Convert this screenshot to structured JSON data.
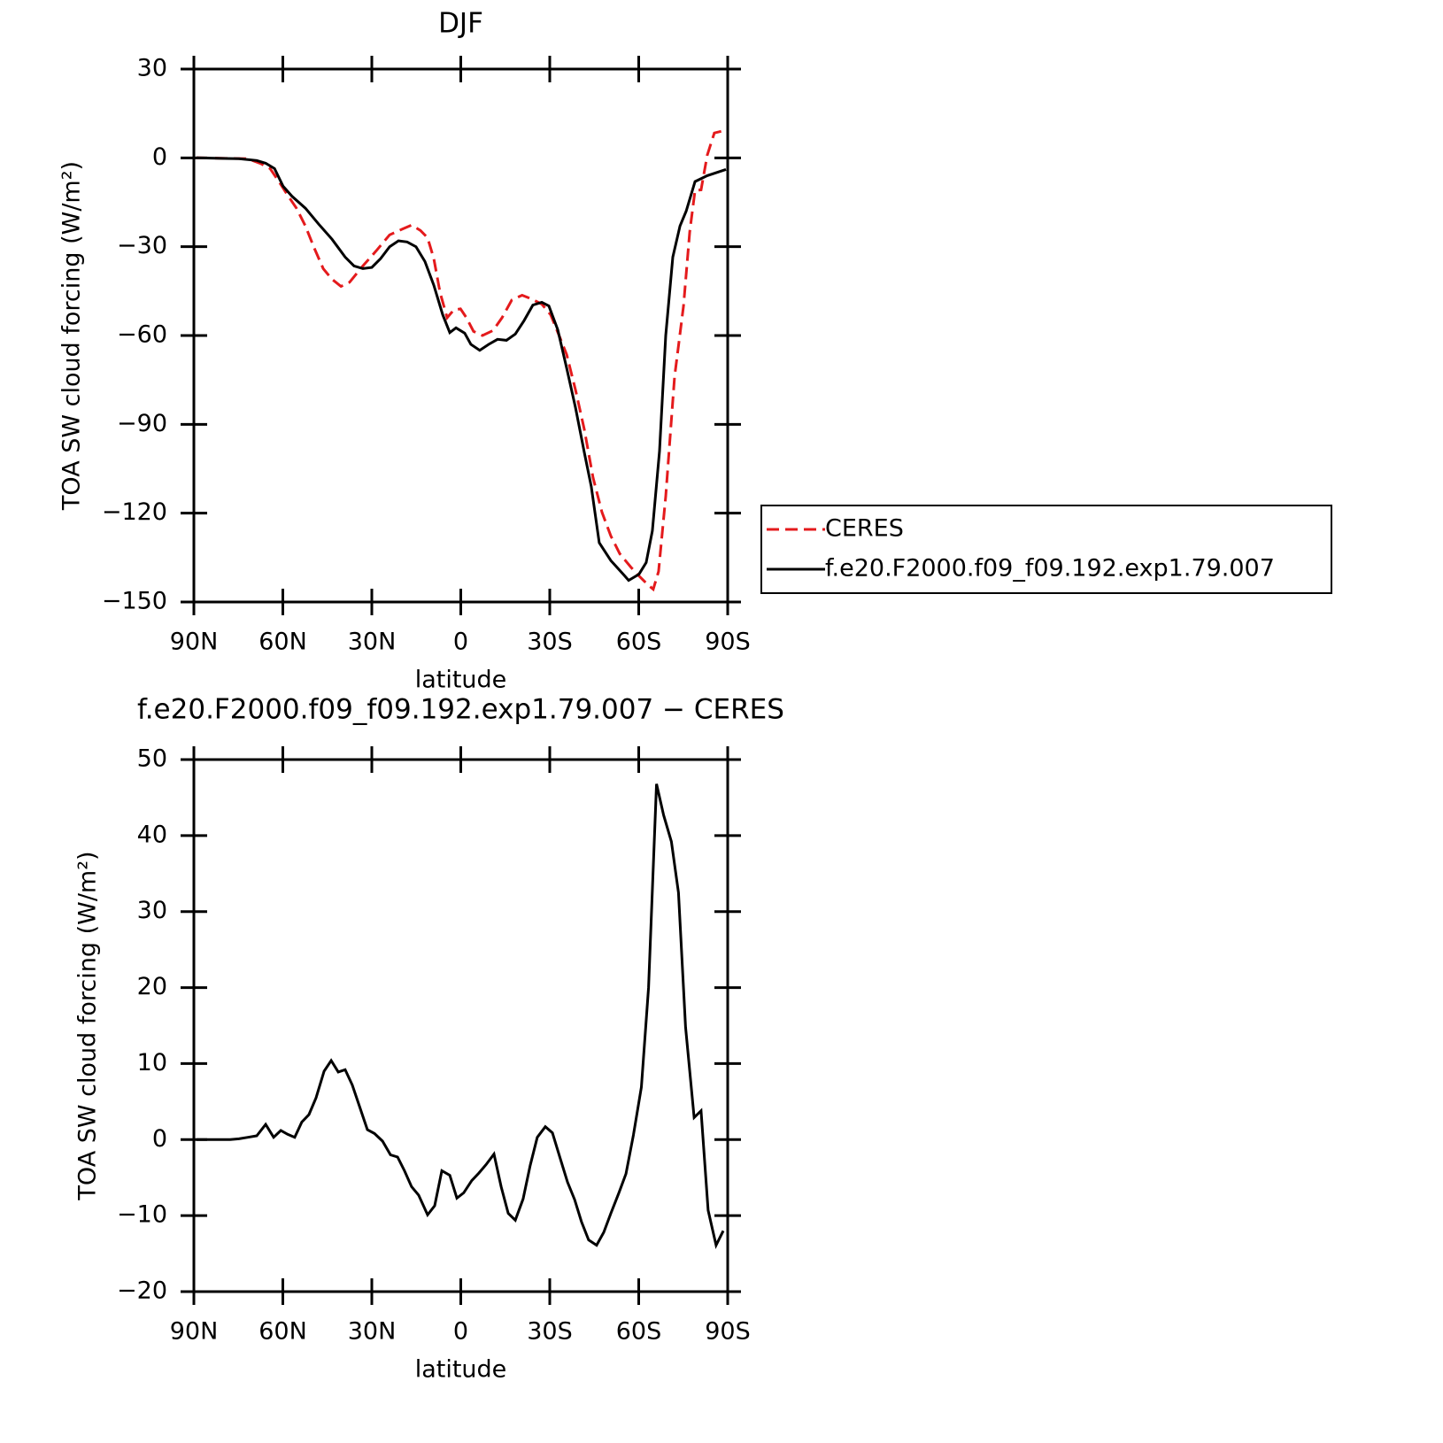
{
  "chart_data": [
    {
      "type": "line",
      "title": "DJF",
      "x_label": "latitude",
      "y_label": "TOA SW cloud forcing (W/m²)",
      "xlim": [
        90,
        -90
      ],
      "xticks": [
        {
          "value": 90,
          "label": "90N"
        },
        {
          "value": 60,
          "label": "60N"
        },
        {
          "value": 30,
          "label": "30N"
        },
        0,
        {
          "value": -30,
          "label": "30S"
        },
        {
          "value": -60,
          "label": "60S"
        },
        {
          "value": -90,
          "label": "90S"
        }
      ],
      "ylim": [
        -150,
        30
      ],
      "yticks": [
        {
          "value": -150,
          "label": "−150"
        },
        {
          "value": -120,
          "label": "−120"
        },
        {
          "value": -90,
          "label": "−90"
        },
        {
          "value": -60,
          "label": "−60"
        },
        {
          "value": -30,
          "label": "−30"
        },
        0,
        30
      ],
      "legend": "right",
      "series": [
        {
          "name": "CERES",
          "color": "#e41a1c",
          "dashed": true,
          "x": [
            89.1,
            71.8,
            67.3,
            64.3,
            61.3,
            58.4,
            55.4,
            52.4,
            49.4,
            46.4,
            43.4,
            40.4,
            37.5,
            33,
            28.5,
            24,
            19.6,
            16.6,
            13.6,
            11.2,
            9.1,
            7,
            4.6,
            2.4,
            0.1,
            -1.9,
            -4.3,
            -7.3,
            -10.9,
            -13.9,
            -17.2,
            -20.7,
            -23.7,
            -27.3,
            -30.3,
            -33.3,
            -35.7,
            -38.7,
            -41.6,
            -44.6,
            -47.6,
            -50.6,
            -53.6,
            -57.3,
            -60.1,
            -63.1,
            -64.9,
            -66.7,
            -69.1,
            -72.1,
            -75.1,
            -77.2,
            -79,
            -81,
            -83.1,
            -85.5,
            -87.9,
            -89.4
          ],
          "values": [
            0,
            -0.3,
            -2,
            -3.6,
            -8,
            -12.6,
            -17,
            -23,
            -30.5,
            -37.4,
            -41,
            -43.4,
            -42,
            -36.5,
            -31.4,
            -26,
            -24,
            -22.7,
            -24.5,
            -27,
            -34,
            -45.5,
            -54,
            -51.4,
            -51,
            -54,
            -58.6,
            -60,
            -58.3,
            -54,
            -48,
            -46.4,
            -47.6,
            -49.4,
            -53,
            -60.4,
            -66.4,
            -78.4,
            -91.5,
            -108,
            -119.7,
            -127.7,
            -133.7,
            -138.2,
            -141.2,
            -144.2,
            -145.7,
            -139.7,
            -114.3,
            -73.9,
            -50,
            -25,
            -11,
            -10.8,
            0.9,
            8.4,
            9,
            8.4
          ]
        },
        {
          "name": "f.e20.F2000.f09_f09.192.exp1.79.007",
          "color": "#000000",
          "dashed": false,
          "x": [
            89.1,
            74.8,
            68.8,
            65.8,
            62.8,
            59.9,
            56.9,
            52.4,
            47.9,
            43.4,
            39,
            36,
            33,
            30,
            27,
            24,
            21,
            18.1,
            15.1,
            12.1,
            9.1,
            6.1,
            3.7,
            1.6,
            -1.3,
            -3.4,
            -6.4,
            -9.4,
            -12.4,
            -15.4,
            -18.4,
            -21.3,
            -24.3,
            -27.3,
            -29.7,
            -32.7,
            -35.7,
            -38.7,
            -41.6,
            -44,
            -46.7,
            -50.6,
            -55.1,
            -56.6,
            -60.1,
            -62.5,
            -64.6,
            -67,
            -69.1,
            -71.5,
            -73.9,
            -76,
            -79,
            -83.1,
            -89.4
          ],
          "values": [
            0,
            -0.3,
            -0.9,
            -1.8,
            -3.6,
            -9.6,
            -13,
            -17,
            -22.4,
            -27.5,
            -33.5,
            -36.5,
            -37.4,
            -37,
            -34,
            -30,
            -28,
            -28.4,
            -30,
            -35,
            -43,
            -53,
            -59,
            -57.4,
            -59.2,
            -63,
            -65,
            -63,
            -61.3,
            -61.6,
            -59.5,
            -55,
            -49.7,
            -48.8,
            -50,
            -58,
            -71,
            -84.4,
            -99.3,
            -111,
            -130,
            -136,
            -141,
            -142.7,
            -140.6,
            -136.7,
            -126,
            -99,
            -60,
            -33.5,
            -23,
            -18,
            -8,
            -6,
            -3.9
          ]
        }
      ]
    },
    {
      "type": "line",
      "title": "f.e20.F2000.f09_f09.192.exp1.79.007 − CERES",
      "x_label": "latitude",
      "y_label": "TOA SW cloud forcing (W/m²)",
      "xlim": [
        90,
        -90
      ],
      "xticks": [
        {
          "value": 90,
          "label": "90N"
        },
        {
          "value": 60,
          "label": "60N"
        },
        {
          "value": 30,
          "label": "30N"
        },
        0,
        {
          "value": -30,
          "label": "30S"
        },
        {
          "value": -60,
          "label": "60S"
        },
        {
          "value": -90,
          "label": "90S"
        }
      ],
      "ylim": [
        -20,
        50
      ],
      "yticks": [
        {
          "value": -20,
          "label": "−20"
        },
        {
          "value": -10,
          "label": "−10"
        },
        0,
        10,
        20,
        30,
        40,
        50
      ],
      "series": [
        {
          "color": "#000000",
          "dashed": false,
          "x": [
            89.1,
            77.8,
            74.8,
            71.8,
            68.8,
            65.8,
            63.1,
            60.7,
            58.4,
            56,
            53.6,
            51.2,
            48.8,
            46.1,
            43.7,
            41.3,
            39,
            36.6,
            33.9,
            31.5,
            29.1,
            26.4,
            23.7,
            21.3,
            19,
            16.6,
            14.2,
            11.2,
            8.8,
            6.4,
            3.7,
            1.3,
            -1,
            -3.7,
            -6.1,
            -8.5,
            -11.2,
            -13.6,
            -16,
            -18.4,
            -21,
            -23.4,
            -25.8,
            -28.5,
            -30.9,
            -33.3,
            -36,
            -38.4,
            -40.7,
            -43.1,
            -45.8,
            -48.2,
            -50.6,
            -53.3,
            -55.7,
            -58.2,
            -60.9,
            -63.3,
            -66,
            -68.4,
            -71,
            -73.4,
            -75.8,
            -78.7,
            -81,
            -83.4,
            -86.1,
            -88.5
          ],
          "values": [
            0,
            0,
            0.1,
            0.3,
            0.5,
            2,
            0.3,
            1.2,
            0.7,
            0.3,
            2.3,
            3.3,
            5.5,
            9,
            10.4,
            8.9,
            9.2,
            7.2,
            4.1,
            1.3,
            0.8,
            -0.2,
            -2,
            -2.3,
            -4.1,
            -6.2,
            -7.3,
            -9.9,
            -8.7,
            -4.1,
            -4.7,
            -7.7,
            -7,
            -5.4,
            -4.4,
            -3.3,
            -1.9,
            -6.2,
            -9.7,
            -10.6,
            -7.8,
            -3.4,
            0.3,
            1.7,
            0.9,
            -2.2,
            -5.6,
            -7.9,
            -10.8,
            -13.2,
            -13.9,
            -12.2,
            -9.7,
            -7,
            -4.5,
            0.6,
            6.9,
            20,
            46.8,
            42.7,
            39.2,
            32.5,
            14.8,
            2.9,
            3.8,
            -9.3,
            -13.9,
            -12
          ]
        }
      ]
    }
  ]
}
